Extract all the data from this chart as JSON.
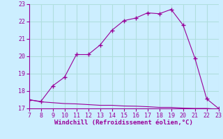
{
  "x": [
    7,
    8,
    9,
    10,
    11,
    12,
    13,
    14,
    15,
    16,
    17,
    18,
    19,
    20,
    21,
    22,
    23
  ],
  "y_upper": [
    17.5,
    17.4,
    18.3,
    18.8,
    20.1,
    20.1,
    20.65,
    21.5,
    22.05,
    22.2,
    22.5,
    22.45,
    22.7,
    21.8,
    19.9,
    17.55,
    17.0
  ],
  "y_lower": [
    17.5,
    17.38,
    17.33,
    17.28,
    17.26,
    17.22,
    17.18,
    17.18,
    17.14,
    17.13,
    17.1,
    17.06,
    17.06,
    17.02,
    17.0,
    17.0,
    16.95
  ],
  "line_color": "#990099",
  "bg_color": "#cceeff",
  "grid_color": "#aadddd",
  "xlabel": "Windchill (Refroidissement éolien,°C)",
  "xlabel_color": "#990099",
  "tick_color": "#990099",
  "ylim": [
    17,
    23
  ],
  "xlim": [
    7,
    23
  ],
  "yticks": [
    17,
    18,
    19,
    20,
    21,
    22,
    23
  ],
  "xticks": [
    7,
    8,
    9,
    10,
    11,
    12,
    13,
    14,
    15,
    16,
    17,
    18,
    19,
    20,
    21,
    22,
    23
  ],
  "marker": "+"
}
